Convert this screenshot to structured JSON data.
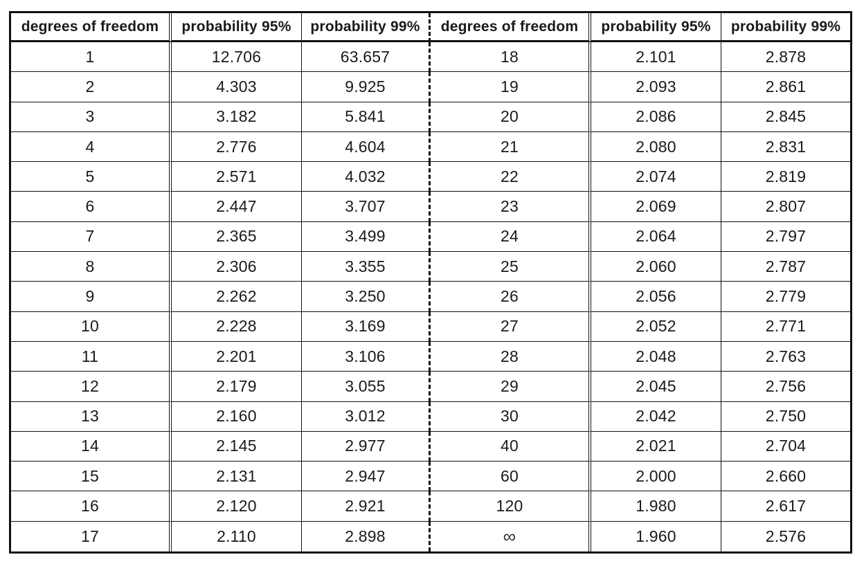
{
  "headers": [
    "degrees of freedom",
    "probability 95%",
    "probability 99%",
    "degrees of freedom",
    "probability 95%",
    "probability 99%"
  ],
  "rows": [
    [
      "1",
      "12.706",
      "63.657",
      "18",
      "2.101",
      "2.878"
    ],
    [
      "2",
      "4.303",
      "9.925",
      "19",
      "2.093",
      "2.861"
    ],
    [
      "3",
      "3.182",
      "5.841",
      "20",
      "2.086",
      "2.845"
    ],
    [
      "4",
      "2.776",
      "4.604",
      "21",
      "2.080",
      "2.831"
    ],
    [
      "5",
      "2.571",
      "4.032",
      "22",
      "2.074",
      "2.819"
    ],
    [
      "6",
      "2.447",
      "3.707",
      "23",
      "2.069",
      "2.807"
    ],
    [
      "7",
      "2.365",
      "3.499",
      "24",
      "2.064",
      "2.797"
    ],
    [
      "8",
      "2.306",
      "3.355",
      "25",
      "2.060",
      "2.787"
    ],
    [
      "9",
      "2.262",
      "3.250",
      "26",
      "2.056",
      "2.779"
    ],
    [
      "10",
      "2.228",
      "3.169",
      "27",
      "2.052",
      "2.771"
    ],
    [
      "11",
      "2.201",
      "3.106",
      "28",
      "2.048",
      "2.763"
    ],
    [
      "12",
      "2.179",
      "3.055",
      "29",
      "2.045",
      "2.756"
    ],
    [
      "13",
      "2.160",
      "3.012",
      "30",
      "2.042",
      "2.750"
    ],
    [
      "14",
      "2.145",
      "2.977",
      "40",
      "2.021",
      "2.704"
    ],
    [
      "15",
      "2.131",
      "2.947",
      "60",
      "2.000",
      "2.660"
    ],
    [
      "16",
      "2.120",
      "2.921",
      "120",
      "1.980",
      "2.617"
    ],
    [
      "17",
      "2.110",
      "2.898",
      "∞",
      "1.960",
      "2.576"
    ]
  ]
}
